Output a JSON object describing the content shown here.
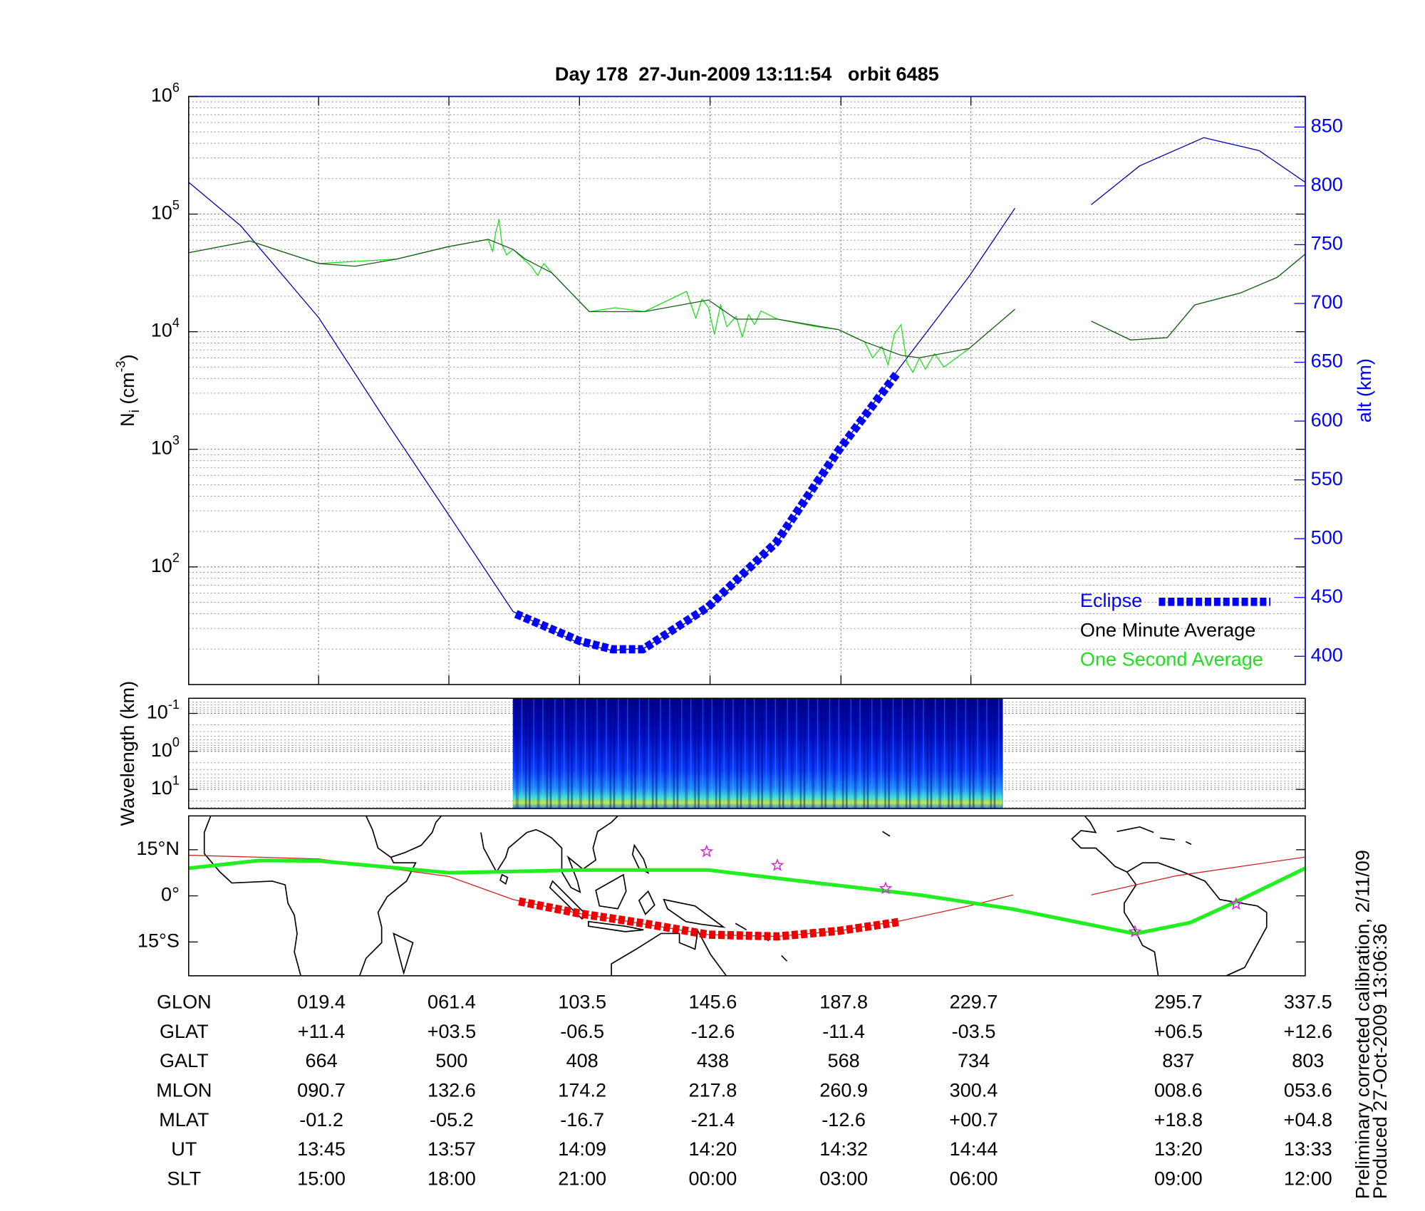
{
  "chart_data": [
    {
      "type": "line",
      "title": "Day 178  27-Jun-2009 13:11:54   orbit 6485",
      "ylabel": [
        "N",
        "i",
        " (cm",
        "-3",
        ")"
      ],
      "y2label": "alt (km)",
      "xlim": [
        -22.5,
        337.5
      ],
      "xticks": [
        19.4,
        61.4,
        103.5,
        145.6,
        187.8,
        229.7
      ],
      "ylim": [
        10,
        1000000
      ],
      "ylog": true,
      "yticks": [
        {
          "value": 100,
          "label": "10",
          "exp": "2"
        },
        {
          "value": 1000,
          "label": "10",
          "exp": "3"
        },
        {
          "value": 10000,
          "label": "10",
          "exp": "4"
        },
        {
          "value": 100000,
          "label": "10",
          "exp": "5"
        },
        {
          "value": 1000000,
          "label": "10",
          "exp": "6"
        }
      ],
      "y2lim": [
        376,
        876
      ],
      "y2ticks": [
        400,
        450,
        500,
        550,
        600,
        650,
        700,
        750,
        800,
        850
      ],
      "y2color": "#0000ff",
      "grid": true,
      "legend": "lower right",
      "series": [
        {
          "name": "Eclipse",
          "color": "#0000ff",
          "axis": "y2",
          "style": "dashed-thick",
          "x": [
            83,
            103.5,
            114,
            124,
            145,
            167,
            187,
            206
          ],
          "values": [
            436,
            413,
            406,
            406,
            442,
            497,
            575,
            641
          ]
        },
        {
          "name": "One Minute Average",
          "color": "#1e5a1e",
          "label_color": "#000000",
          "style": "thin",
          "x": [
            -22.5,
            -2.8,
            19.4,
            31.2,
            44.6,
            61.4,
            74.1,
            82.1,
            86,
            94.6,
            106.7,
            124.4,
            145.1,
            154,
            167.3,
            187.1,
            195.4,
            207.2,
            213.1,
            229.1,
            243.9,
            256,
            268.5,
            281.2,
            293,
            301.9,
            316.7,
            328.5,
            337.5
          ],
          "values": [
            47000,
            59000,
            38000,
            36000,
            41500,
            53000,
            61000,
            50000,
            41500,
            31600,
            14800,
            14800,
            18600,
            12800,
            12800,
            10400,
            8200,
            6300,
            6000,
            7200,
            15500,
            null,
            12300,
            8500,
            8900,
            16900,
            21400,
            29000,
            45700
          ]
        },
        {
          "name": "One Second Average",
          "color": "#22dd22",
          "style": "thin",
          "x": [
            -22.5,
            -2.8,
            19.4,
            44.6,
            61.4,
            74.1,
            75.5,
            76.5,
            77.6,
            78.5,
            80,
            82.1,
            88,
            90,
            92,
            94.6,
            106.7,
            115,
            124.4,
            138,
            141,
            143,
            145.1,
            147,
            149,
            151,
            154,
            156,
            158,
            160,
            162,
            167.3,
            180,
            187.1,
            192,
            195.4,
            198,
            201,
            203,
            205,
            207.2,
            209,
            211,
            213.1,
            215,
            218,
            221,
            229.1,
            243.9,
            256,
            268.5,
            281.2,
            293,
            301.9,
            316.7,
            328.5,
            337.5
          ],
          "values": [
            47000,
            59000,
            38000,
            41500,
            53000,
            61000,
            48000,
            70000,
            90000,
            55000,
            45000,
            50000,
            36000,
            30000,
            38000,
            31600,
            14800,
            16000,
            14800,
            22000,
            13000,
            19000,
            16000,
            9500,
            17000,
            11000,
            13500,
            9000,
            14000,
            11500,
            15000,
            12800,
            11000,
            10400,
            9000,
            8200,
            6000,
            7500,
            5200,
            9500,
            11500,
            5500,
            4500,
            6000,
            4800,
            6500,
            5000,
            7200,
            15500,
            null,
            12300,
            8500,
            8900,
            16900,
            21400,
            29000,
            45700
          ]
        },
        {
          "color": "#0000aa",
          "axis": "y2",
          "style": "thin",
          "x": [
            -22.5,
            -5.7,
            19.4,
            41.6,
            61.4,
            82.1,
            103.4,
            114.1,
            124.4,
            145.1,
            167.3,
            187.1,
            207.2,
            229.1,
            243.9,
            256,
            268.5,
            284.1,
            304.8,
            322.6,
            337.5
          ],
          "values": [
            803,
            766,
            688,
            598,
            520,
            438,
            411,
            405,
            407,
            440,
            497,
            575,
            647,
            723,
            781,
            null,
            784,
            817,
            841,
            830,
            803
          ]
        }
      ]
    },
    {
      "type": "spectrogram",
      "ylabel": "Wavelength (km)",
      "xlim": [
        -22.5,
        337.5
      ],
      "ylim": [
        0.04,
        32
      ],
      "ylog": true,
      "y_reversed": true,
      "yticks": [
        {
          "value": 0.1,
          "label": "10",
          "exp": "-1"
        },
        {
          "value": 1,
          "label": "10",
          "exp": "0"
        },
        {
          "value": 10,
          "label": "10",
          "exp": "1"
        }
      ],
      "grid": true,
      "extent": [
        82,
        240
      ]
    },
    {
      "type": "map",
      "xlim": [
        -22.5,
        337.5
      ],
      "ylim": [
        -26,
        26
      ],
      "yticks": [
        {
          "value": 15,
          "label": "15°N"
        },
        {
          "value": 0,
          "label": "0°"
        },
        {
          "value": -15,
          "label": "15°S"
        }
      ],
      "series": [
        {
          "color": "#cc2222",
          "style": "thin",
          "x": [
            -22.5,
            19.4,
            61.4,
            82.1,
            103.4,
            145.1,
            167.3,
            187.1,
            207.2,
            229.1,
            243.3,
            256,
            268.5,
            295.7,
            337.5
          ],
          "values": [
            13.2,
            12,
            6.3,
            -1.2,
            -5.7,
            -12.6,
            -13.2,
            -11.4,
            -8.1,
            -3.3,
            0.3,
            null,
            0.3,
            6.5,
            12.6
          ]
        },
        {
          "color": "#ee0000",
          "style": "dashed-thick",
          "x": [
            84,
            103.4,
            124.4,
            145.1,
            167.3,
            187.1,
            206.6
          ],
          "values": [
            -1.8,
            -5.7,
            -9,
            -12.6,
            -13.2,
            -11.4,
            -8.5
          ]
        },
        {
          "color": "#22ee22",
          "style": "bold",
          "x": [
            -22.5,
            0.2,
            19.4,
            61.4,
            103.4,
            145.1,
            167.3,
            213.1,
            242.7,
            282.6,
            300.4,
            316.7,
            337.5
          ],
          "values": [
            9,
            11.5,
            11.4,
            7.5,
            8.4,
            8.4,
            5.7,
            0.3,
            -4.2,
            -12.3,
            -8.7,
            -1.2,
            9
          ]
        }
      ],
      "stars": {
        "color": "#cc33cc",
        "x": [
          144.5,
          167.3,
          202.2,
          282.6,
          315.2
        ],
        "values": [
          14.4,
          9.9,
          2.4,
          -11.7,
          -2.7
        ]
      }
    }
  ],
  "table": {
    "rows": [
      {
        "label": "GLON",
        "cells": [
          "019.4",
          "061.4",
          "103.5",
          "145.6",
          "187.8",
          "229.7",
          "295.7",
          "337.5"
        ]
      },
      {
        "label": "GLAT",
        "cells": [
          "+11.4",
          "+03.5",
          "-06.5",
          "-12.6",
          "-11.4",
          "-03.5",
          "+06.5",
          "+12.6"
        ]
      },
      {
        "label": "GALT",
        "cells": [
          "664",
          "500",
          "408",
          "438",
          "568",
          "734",
          "837",
          "803"
        ]
      },
      {
        "label": "MLON",
        "cells": [
          "090.7",
          "132.6",
          "174.2",
          "217.8",
          "260.9",
          "300.4",
          "008.6",
          "053.6"
        ]
      },
      {
        "label": "MLAT",
        "cells": [
          "-01.2",
          "-05.2",
          "-16.7",
          "-21.4",
          "-12.6",
          "+00.7",
          "+18.8",
          "+04.8"
        ]
      },
      {
        "label": "UT",
        "cells": [
          "13:45",
          "13:57",
          "14:09",
          "14:20",
          "14:32",
          "14:44",
          "13:20",
          "13:33"
        ]
      },
      {
        "label": "SLT",
        "cells": [
          "15:00",
          "18:00",
          "21:00",
          "00:00",
          "03:00",
          "06:00",
          "09:00",
          "12:00"
        ]
      }
    ]
  },
  "notes": [
    "Preliminary corrected calibration, 2/11/09",
    "Produced 27-Oct-2009 13:06:36"
  ]
}
